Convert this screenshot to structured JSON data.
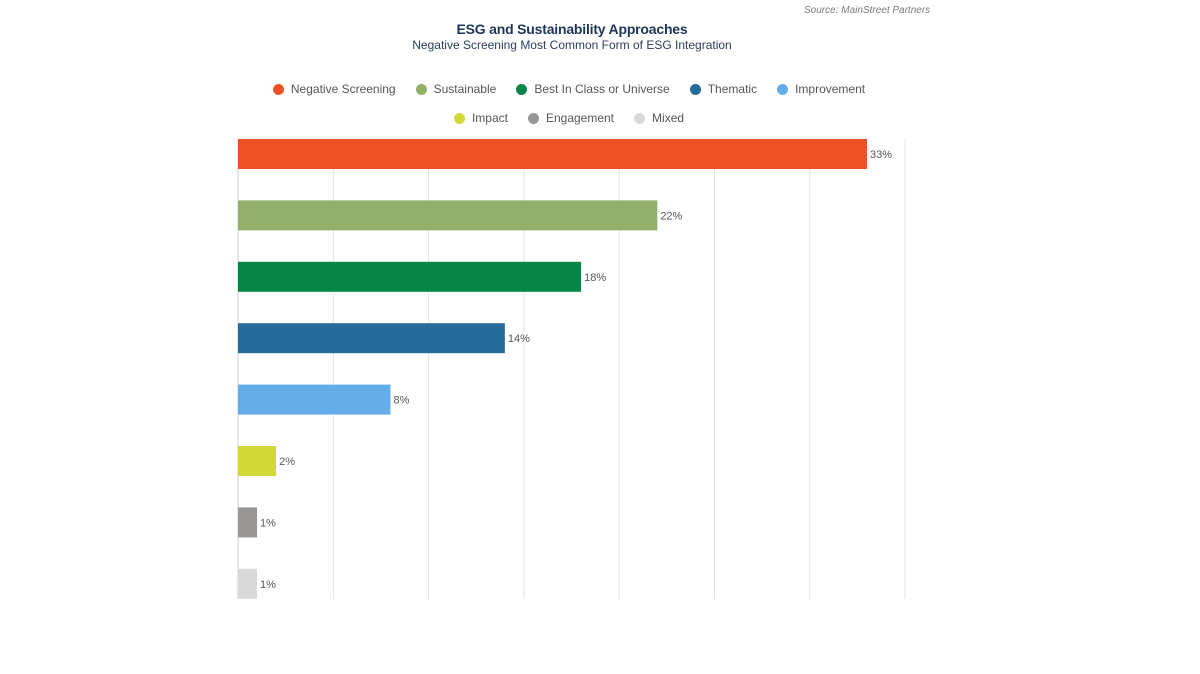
{
  "source": "Source: MainStreet Partners",
  "chart_data": {
    "type": "bar",
    "orientation": "horizontal",
    "title": "ESG and Sustainability Approaches",
    "subtitle": "Negative Screening Most Common Form of ESG Integration",
    "categories": [
      "Negative Screening",
      "Sustainable",
      "Best In Class or Universe",
      "Thematic",
      "Improvement",
      "Impact",
      "Engagement",
      "Mixed"
    ],
    "values": [
      33,
      22,
      18,
      14,
      8,
      2,
      1,
      1
    ],
    "labels": [
      "33%",
      "22%",
      "18%",
      "14%",
      "8%",
      "2%",
      "1%",
      "1%"
    ],
    "colors": [
      "#ee5125",
      "#93b06a",
      "#078547",
      "#256b9b",
      "#63aeea",
      "#d3d83a",
      "#999696",
      "#d9d9d9"
    ],
    "xlim": [
      0,
      35
    ],
    "grid_step": 5,
    "grid": true,
    "legend_position": "top-center"
  }
}
